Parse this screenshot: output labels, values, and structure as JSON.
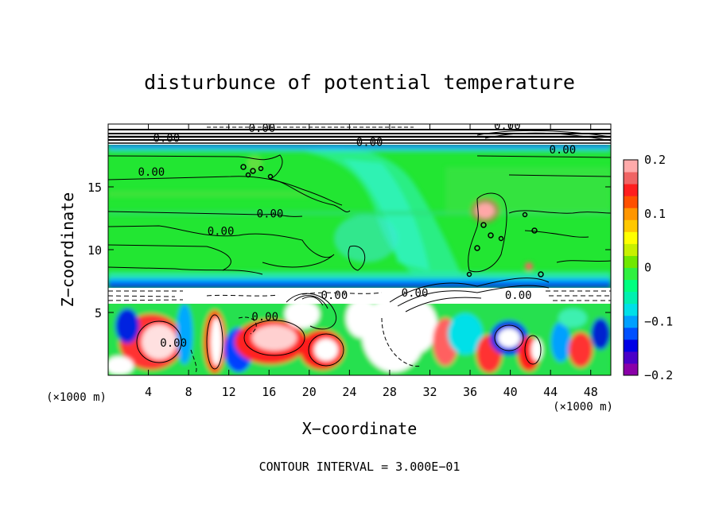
{
  "chart_data": {
    "type": "heatmap",
    "title": "disturbunce of potential temperature",
    "xlabel": "X−coordinate",
    "ylabel": "Z−coordinate",
    "x_unit": "(×1000 m)",
    "z_unit": "(×1000 m)",
    "note": "CONTOUR INTERVAL = 3.000E−01",
    "xlim": [
      0,
      50
    ],
    "zlim": [
      0,
      20
    ],
    "x_ticks": [
      4,
      8,
      12,
      16,
      20,
      24,
      28,
      32,
      36,
      40,
      44,
      48
    ],
    "z_ticks": [
      5,
      10,
      15
    ],
    "colorbar": {
      "range": [
        -0.2,
        0.2
      ],
      "ticks": [
        {
          "value": 0.2,
          "label": "0.2"
        },
        {
          "value": 0.1,
          "label": "0.1"
        },
        {
          "value": 0,
          "label": "0"
        },
        {
          "value": -0.1,
          "label": "−0.1"
        },
        {
          "value": -0.2,
          "label": "−0.2"
        }
      ],
      "colors": [
        "#8a00a8",
        "#4a00c8",
        "#0000e6",
        "#0050ff",
        "#00a0ff",
        "#00e0e8",
        "#00f0b0",
        "#00ff80",
        "#30f040",
        "#70e800",
        "#c8f000",
        "#ffff00",
        "#ffc800",
        "#ff9600",
        "#ff5000",
        "#ff1e1e",
        "#f06464",
        "#ffaaaa"
      ]
    },
    "contour_labels": [
      {
        "x": 15.3,
        "z": 19.5,
        "text": "0.00"
      },
      {
        "x": 5.8,
        "z": 18.7,
        "text": "0.00"
      },
      {
        "x": 4.3,
        "z": 16.0,
        "text": "0.00"
      },
      {
        "x": 16.1,
        "z": 12.7,
        "text": "0.00"
      },
      {
        "x": 11.2,
        "z": 11.3,
        "text": "0.00"
      },
      {
        "x": 6.5,
        "z": 2.4,
        "text": "0.00"
      },
      {
        "x": 15.6,
        "z": 4.5,
        "text": "0.00"
      },
      {
        "x": 22.5,
        "z": 6.2,
        "text": "0.00"
      },
      {
        "x": 30.5,
        "z": 6.4,
        "text": "0.00"
      },
      {
        "x": 40.8,
        "z": 6.2,
        "text": "0.00"
      },
      {
        "x": 39.7,
        "z": 19.7,
        "text": "0.00"
      },
      {
        "x": 45.2,
        "z": 17.8,
        "text": "0.00"
      },
      {
        "x": 26.0,
        "z": 18.4,
        "text": "0.00"
      }
    ]
  }
}
